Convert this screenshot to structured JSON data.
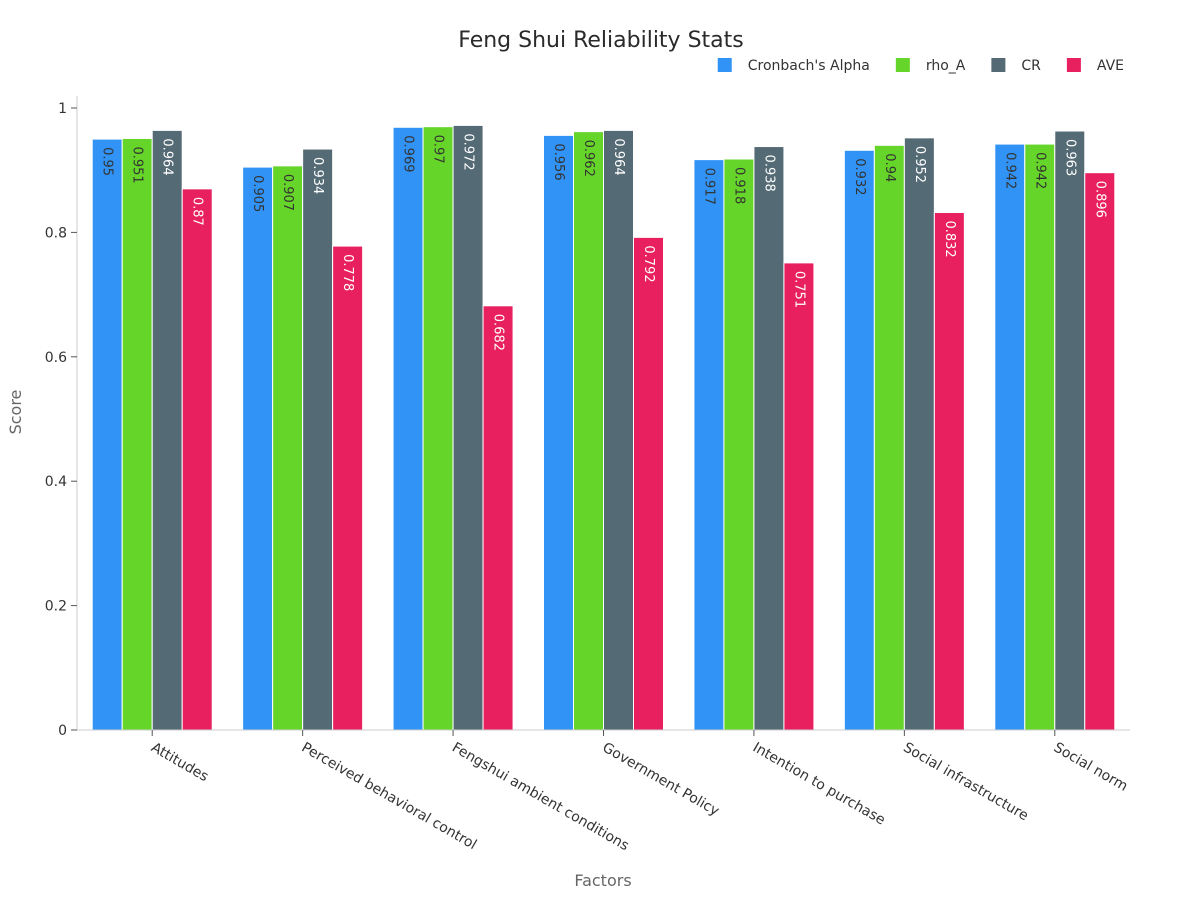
{
  "chart_data": {
    "type": "bar",
    "title": "Feng Shui Reliability Stats",
    "xlabel": "Factors",
    "ylabel": "Score",
    "ylim": [
      0,
      1
    ],
    "yticks": [
      0,
      0.2,
      0.4,
      0.6,
      0.8,
      1
    ],
    "ytick_labels": [
      "0",
      "0.2",
      "0.4",
      "0.6",
      "0.8",
      "1"
    ],
    "grid": false,
    "legend_position": "top-right",
    "categories": [
      "Attitudes",
      "Perceived behavioral control",
      "Fengshui ambient conditions",
      "Government Policy",
      "Intention to purchase",
      "Social infrastructure",
      "Social norm"
    ],
    "series": [
      {
        "name": "Cronbach's Alpha",
        "color": "#3193f5",
        "label_color": "#333333",
        "values": [
          0.95,
          0.905,
          0.969,
          0.956,
          0.917,
          0.932,
          0.942
        ]
      },
      {
        "name": "rho_A",
        "color": "#66d529",
        "label_color": "#333333",
        "values": [
          0.951,
          0.907,
          0.97,
          0.962,
          0.918,
          0.94,
          0.942
        ]
      },
      {
        "name": "CR",
        "color": "#546a74",
        "label_color": "#ffffff",
        "values": [
          0.964,
          0.934,
          0.972,
          0.964,
          0.938,
          0.952,
          0.963
        ]
      },
      {
        "name": "AVE",
        "color": "#e8205f",
        "label_color": "#ffffff",
        "values": [
          0.87,
          0.778,
          0.682,
          0.792,
          0.751,
          0.832,
          0.896
        ]
      }
    ]
  }
}
